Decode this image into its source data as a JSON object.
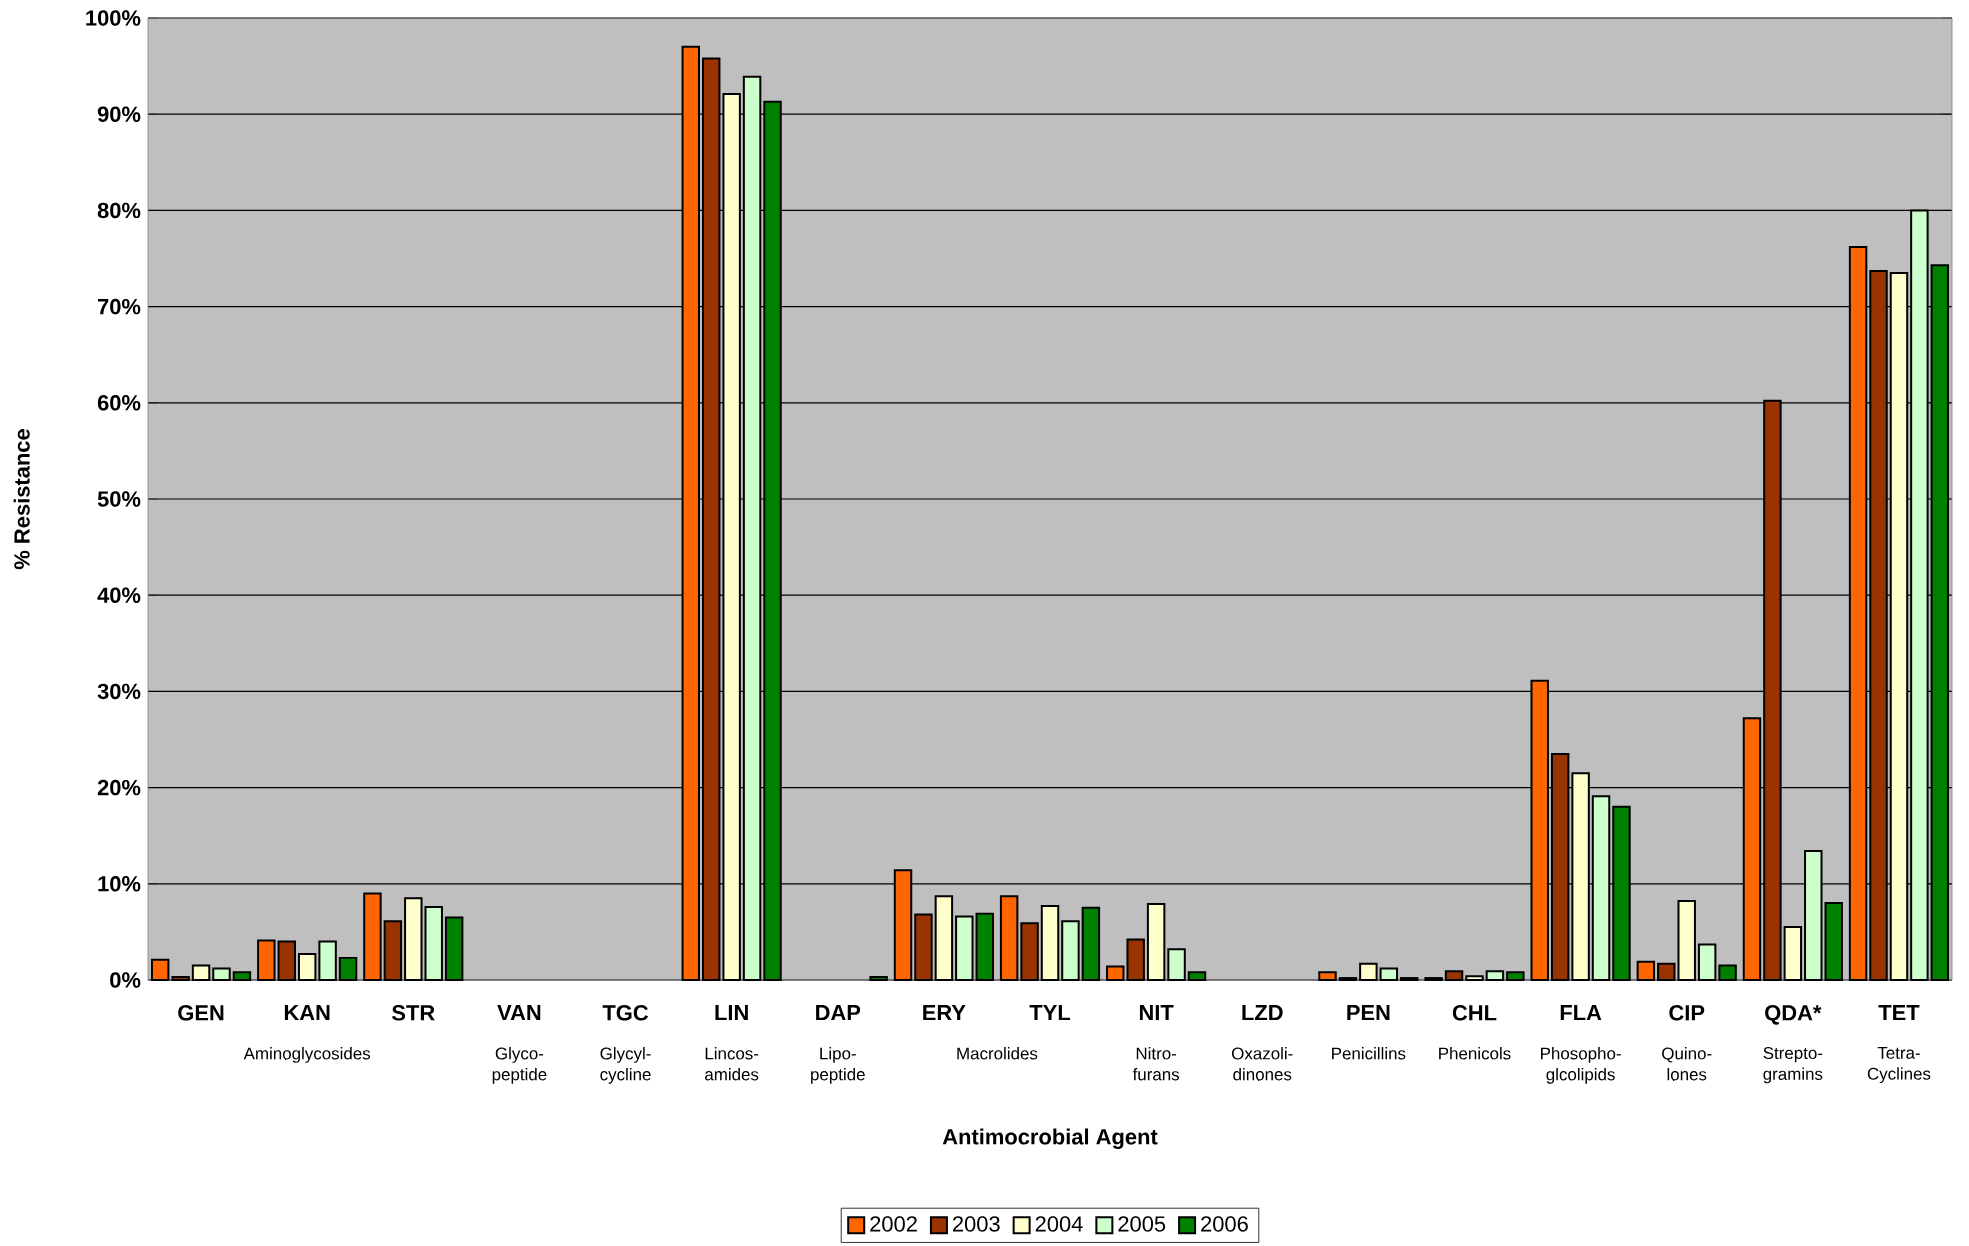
{
  "chart_data": {
    "type": "bar",
    "xlabel": "Antimocrobial Agent",
    "ylabel": "% Resistance",
    "categories": [
      "GEN",
      "KAN",
      "STR",
      "VAN",
      "TGC",
      "LIN",
      "DAP",
      "ERY",
      "TYL",
      "NIT",
      "LZD",
      "PEN",
      "CHL",
      "FLA",
      "CIP",
      "QDA*",
      "TET"
    ],
    "series": [
      {
        "name": "2002",
        "color": "#ff6600",
        "values": [
          2.1,
          4.1,
          9.0,
          0,
          0,
          97.0,
          0,
          11.4,
          8.7,
          1.4,
          0,
          0.8,
          0.2,
          31.1,
          1.9,
          27.2,
          76.2
        ]
      },
      {
        "name": "2003",
        "color": "#993300",
        "values": [
          0.3,
          4.0,
          6.1,
          0,
          0,
          95.8,
          0,
          6.8,
          5.9,
          4.2,
          0,
          0.2,
          0.9,
          23.5,
          1.7,
          60.2,
          73.7
        ]
      },
      {
        "name": "2004",
        "color": "#ffffcc",
        "values": [
          1.5,
          2.7,
          8.5,
          0,
          0,
          92.1,
          0,
          8.7,
          7.7,
          7.9,
          0,
          1.7,
          0.4,
          21.5,
          8.2,
          5.5,
          73.5
        ]
      },
      {
        "name": "2005",
        "color": "#ccffcc",
        "values": [
          1.2,
          4.0,
          7.6,
          0,
          0,
          93.9,
          0,
          6.6,
          6.1,
          3.2,
          0,
          1.2,
          0.9,
          19.1,
          3.7,
          13.4,
          80.0
        ]
      },
      {
        "name": "2006",
        "color": "#008000",
        "values": [
          0.8,
          2.3,
          6.5,
          0,
          0,
          91.3,
          0.3,
          6.9,
          7.5,
          0.8,
          0,
          0.2,
          0.8,
          18.0,
          1.5,
          8.0,
          74.3
        ]
      }
    ],
    "ylim": [
      0,
      100
    ],
    "yticks": [
      {
        "value": 0,
        "label": "0%"
      },
      {
        "value": 10,
        "label": "10%"
      },
      {
        "value": 20,
        "label": "20%"
      },
      {
        "value": 30,
        "label": "30%"
      },
      {
        "value": 40,
        "label": "40%"
      },
      {
        "value": 50,
        "label": "50%"
      },
      {
        "value": 60,
        "label": "60%"
      },
      {
        "value": 70,
        "label": "70%"
      },
      {
        "value": 80,
        "label": "80%"
      },
      {
        "value": 90,
        "label": "90%"
      },
      {
        "value": 100,
        "label": "100%"
      }
    ],
    "grid": "y",
    "legend": "bottom",
    "annotations": [
      "Aminoglycosides",
      "Glyco-peptide",
      "Glycyl-cycline",
      "Lincos-amides",
      "Lipo-peptide",
      "Macrolides",
      "Nitro-furans",
      "Oxazoli-dinones",
      "Penicillins",
      "Phenicols",
      "Phosopho-glcolipids",
      "Quino-lones",
      "Strepto-gramins",
      "Tetra-Cyclines"
    ]
  }
}
